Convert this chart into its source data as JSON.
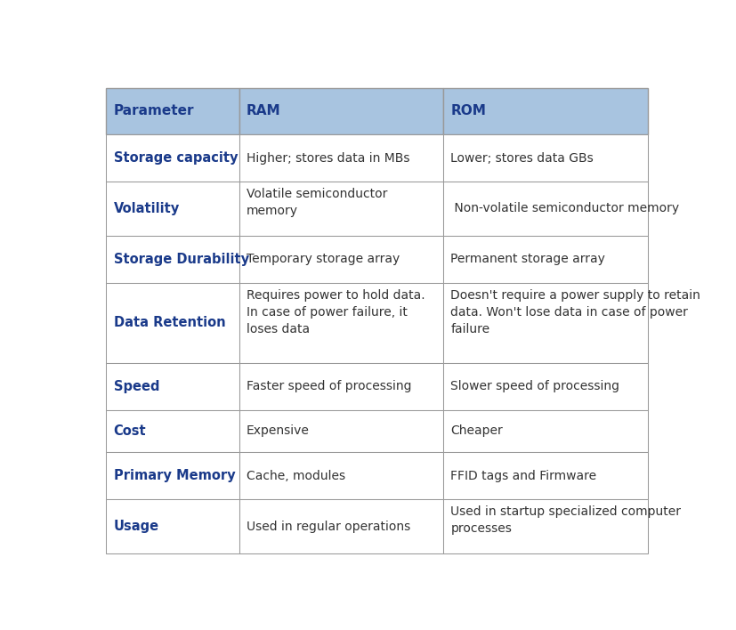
{
  "header": [
    "Parameter",
    "RAM",
    "ROM"
  ],
  "header_bg": "#a8c4e0",
  "header_text_color": "#1a3a8a",
  "row_bg": "#ffffff",
  "border_color": "#999999",
  "param_text_color": "#1a3a8a",
  "cell_text_color": "#333333",
  "rows": [
    {
      "param": "Storage capacity",
      "ram": "Higher; stores data in MBs",
      "rom": "Lower; stores data GBs"
    },
    {
      "param": "Volatility",
      "ram": "Volatile semiconductor\nmemory",
      "rom": " Non-volatile semiconductor memory"
    },
    {
      "param": "Storage Durability",
      "ram": "Temporary storage array",
      "rom": "Permanent storage array"
    },
    {
      "param": "Data Retention",
      "ram": "Requires power to hold data.\nIn case of power failure, it\nloses data",
      "rom": "Doesn't require a power supply to retain\ndata. Won't lose data in case of power\nfailure"
    },
    {
      "param": "Speed",
      "ram": "Faster speed of processing",
      "rom": "Slower speed of processing"
    },
    {
      "param": "Cost",
      "ram": "Expensive",
      "rom": "Cheaper"
    },
    {
      "param": "Primary Memory",
      "ram": "Cache, modules",
      "rom": "FFID tags and Firmware"
    },
    {
      "param": "Usage",
      "ram": "Used in regular operations",
      "rom": "Used in startup specialized computer\nprocesses"
    }
  ],
  "figsize": [
    8.27,
    7.08
  ],
  "dpi": 100,
  "header_fontsize": 11.0,
  "cell_fontsize": 10.0,
  "param_fontsize": 10.5
}
